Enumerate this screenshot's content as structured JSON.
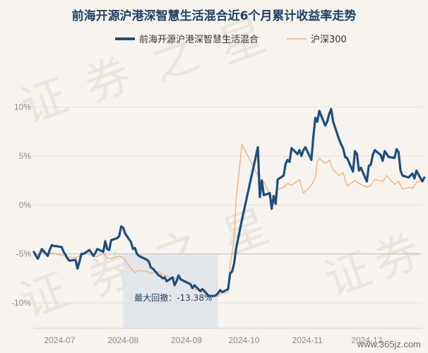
{
  "chart_data": {
    "type": "line",
    "title": "前海开源沪港深智慧生活混合近6个月累计收益率走势",
    "xlabel": "",
    "ylabel": "",
    "x_ticks": [
      "2024-07",
      "2024-08",
      "2024-09",
      "2024-10",
      "2024-11",
      "2024-12"
    ],
    "y_ticks": [
      "10%",
      "5%",
      "0%",
      "-5%",
      "-10%"
    ],
    "ylim": [
      -12.6,
      13.0
    ],
    "grid": true,
    "legend_position": "top",
    "x_start": "2024-06-17",
    "x_end": "2024-12-30",
    "drawdown": {
      "label": "最大回撤：-13.38%",
      "start": "2024-08-01",
      "end": "2024-09-18"
    },
    "series": [
      {
        "name": "前海开源沪港深智慧生活混合",
        "color": "#1f4e7e",
        "points": [
          [
            "2024-06-17",
            -4.8
          ],
          [
            "2024-06-18",
            -5.2
          ],
          [
            "2024-06-19",
            -5.5
          ],
          [
            "2024-06-20",
            -5.0
          ],
          [
            "2024-06-21",
            -4.5
          ],
          [
            "2024-06-24",
            -5.2
          ],
          [
            "2024-06-25",
            -4.6
          ],
          [
            "2024-06-26",
            -4.1
          ],
          [
            "2024-06-27",
            -4.2
          ],
          [
            "2024-06-28",
            -4.2
          ],
          [
            "2024-07-01",
            -4.3
          ],
          [
            "2024-07-02",
            -4.8
          ],
          [
            "2024-07-03",
            -5.1
          ],
          [
            "2024-07-04",
            -5.5
          ],
          [
            "2024-07-05",
            -5.7
          ],
          [
            "2024-07-08",
            -5.6
          ],
          [
            "2024-07-09",
            -6.5
          ],
          [
            "2024-07-10",
            -5.8
          ],
          [
            "2024-07-11",
            -5.0
          ],
          [
            "2024-07-12",
            -5.0
          ],
          [
            "2024-07-15",
            -4.6
          ],
          [
            "2024-07-16",
            -4.9
          ],
          [
            "2024-07-17",
            -5.2
          ],
          [
            "2024-07-18",
            -4.9
          ],
          [
            "2024-07-19",
            -4.5
          ],
          [
            "2024-07-22",
            -4.8
          ],
          [
            "2024-07-23",
            -3.7
          ],
          [
            "2024-07-24",
            -4.5
          ],
          [
            "2024-07-25",
            -4.6
          ],
          [
            "2024-07-26",
            -3.6
          ],
          [
            "2024-07-29",
            -3.4
          ],
          [
            "2024-07-30",
            -3.2
          ],
          [
            "2024-07-31",
            -2.2
          ],
          [
            "2024-08-01",
            -2.3
          ],
          [
            "2024-08-02",
            -2.9
          ],
          [
            "2024-08-05",
            -3.8
          ],
          [
            "2024-08-06",
            -4.5
          ],
          [
            "2024-08-07",
            -4.4
          ],
          [
            "2024-08-08",
            -5.0
          ],
          [
            "2024-08-09",
            -5.2
          ],
          [
            "2024-08-12",
            -5.5
          ],
          [
            "2024-08-13",
            -5.6
          ],
          [
            "2024-08-14",
            -5.8
          ],
          [
            "2024-08-15",
            -6.4
          ],
          [
            "2024-08-16",
            -6.5
          ],
          [
            "2024-08-19",
            -7.2
          ],
          [
            "2024-08-20",
            -7.3
          ],
          [
            "2024-08-21",
            -7.5
          ],
          [
            "2024-08-22",
            -7.4
          ],
          [
            "2024-08-23",
            -7.8
          ],
          [
            "2024-08-26",
            -7.4
          ],
          [
            "2024-08-27",
            -8.2
          ],
          [
            "2024-08-28",
            -7.8
          ],
          [
            "2024-08-29",
            -7.2
          ],
          [
            "2024-08-30",
            -7.6
          ],
          [
            "2024-09-02",
            -7.9
          ],
          [
            "2024-09-03",
            -8.0
          ],
          [
            "2024-09-04",
            -8.1
          ],
          [
            "2024-09-05",
            -8.5
          ],
          [
            "2024-09-06",
            -8.2
          ],
          [
            "2024-09-09",
            -8.8
          ],
          [
            "2024-09-10",
            -8.6
          ],
          [
            "2024-09-11",
            -8.8
          ],
          [
            "2024-09-12",
            -9.0
          ],
          [
            "2024-09-13",
            -9.3
          ],
          [
            "2024-09-16",
            -9.3
          ],
          [
            "2024-09-17",
            -9.2
          ],
          [
            "2024-09-18",
            -9.0
          ],
          [
            "2024-09-19",
            -8.7
          ],
          [
            "2024-09-20",
            -8.9
          ],
          [
            "2024-09-23",
            -8.6
          ],
          [
            "2024-09-24",
            -7.0
          ],
          [
            "2024-09-25",
            -6.8
          ],
          [
            "2024-09-26",
            -6.0
          ],
          [
            "2024-09-27",
            -4.5
          ],
          [
            "2024-09-30",
            -1.5
          ],
          [
            "2024-10-08",
            5.9
          ],
          [
            "2024-10-09",
            0.8
          ],
          [
            "2024-10-10",
            2.5
          ],
          [
            "2024-10-11",
            1.0
          ],
          [
            "2024-10-14",
            1.2
          ],
          [
            "2024-10-15",
            -0.4
          ],
          [
            "2024-10-16",
            0.9
          ],
          [
            "2024-10-17",
            0.1
          ],
          [
            "2024-10-18",
            2.6
          ],
          [
            "2024-10-21",
            3.0
          ],
          [
            "2024-10-22",
            4.2
          ],
          [
            "2024-10-23",
            4.6
          ],
          [
            "2024-10-24",
            4.4
          ],
          [
            "2024-10-25",
            5.8
          ],
          [
            "2024-10-28",
            5.2
          ],
          [
            "2024-10-29",
            5.6
          ],
          [
            "2024-10-30",
            5.0
          ],
          [
            "2024-10-31",
            5.6
          ],
          [
            "2024-11-01",
            5.9
          ],
          [
            "2024-11-04",
            4.6
          ],
          [
            "2024-11-05",
            7.0
          ],
          [
            "2024-11-06",
            8.9
          ],
          [
            "2024-11-07",
            8.5
          ],
          [
            "2024-11-08",
            9.6
          ],
          [
            "2024-11-11",
            8.1
          ],
          [
            "2024-11-12",
            8.5
          ],
          [
            "2024-11-13",
            9.3
          ],
          [
            "2024-11-14",
            9.8
          ],
          [
            "2024-11-15",
            8.5
          ],
          [
            "2024-11-18",
            6.7
          ],
          [
            "2024-11-19",
            6.2
          ],
          [
            "2024-11-20",
            5.8
          ],
          [
            "2024-11-21",
            4.9
          ],
          [
            "2024-11-22",
            4.8
          ],
          [
            "2024-11-25",
            3.4
          ],
          [
            "2024-11-26",
            5.5
          ],
          [
            "2024-11-27",
            5.2
          ],
          [
            "2024-11-28",
            3.5
          ],
          [
            "2024-11-29",
            3.8
          ],
          [
            "2024-12-02",
            2.4
          ],
          [
            "2024-12-03",
            4.0
          ],
          [
            "2024-12-04",
            4.1
          ],
          [
            "2024-12-05",
            5.1
          ],
          [
            "2024-12-06",
            5.6
          ],
          [
            "2024-12-09",
            5.1
          ],
          [
            "2024-12-10",
            4.5
          ],
          [
            "2024-12-11",
            5.5
          ],
          [
            "2024-12-12",
            5.2
          ],
          [
            "2024-12-13",
            4.9
          ],
          [
            "2024-12-16",
            4.8
          ],
          [
            "2024-12-17",
            5.7
          ],
          [
            "2024-12-18",
            5.4
          ],
          [
            "2024-12-19",
            3.5
          ],
          [
            "2024-12-20",
            3.0
          ],
          [
            "2024-12-23",
            2.8
          ],
          [
            "2024-12-24",
            3.0
          ],
          [
            "2024-12-25",
            3.2
          ],
          [
            "2024-12-26",
            2.7
          ],
          [
            "2024-12-27",
            3.5
          ],
          [
            "2024-12-30",
            2.4
          ],
          [
            "2024-12-31",
            2.8
          ]
        ]
      },
      {
        "name": "沪深300",
        "color": "#f0b27a",
        "points": [
          [
            "2024-06-17",
            -4.9
          ],
          [
            "2024-06-19",
            -5.1
          ],
          [
            "2024-06-21",
            -4.8
          ],
          [
            "2024-06-24",
            -5.0
          ],
          [
            "2024-06-26",
            -4.9
          ],
          [
            "2024-06-28",
            -5.0
          ],
          [
            "2024-07-02",
            -5.2
          ],
          [
            "2024-07-04",
            -5.3
          ],
          [
            "2024-07-08",
            -5.4
          ],
          [
            "2024-07-10",
            -5.2
          ],
          [
            "2024-07-12",
            -4.9
          ],
          [
            "2024-07-16",
            -5.1
          ],
          [
            "2024-07-18",
            -5.3
          ],
          [
            "2024-07-22",
            -5.0
          ],
          [
            "2024-07-24",
            -5.4
          ],
          [
            "2024-07-26",
            -5.5
          ],
          [
            "2024-07-30",
            -5.2
          ],
          [
            "2024-08-01",
            -5.4
          ],
          [
            "2024-08-05",
            -6.5
          ],
          [
            "2024-08-07",
            -6.9
          ],
          [
            "2024-08-09",
            -6.7
          ],
          [
            "2024-08-13",
            -6.8
          ],
          [
            "2024-08-15",
            -7.0
          ],
          [
            "2024-08-19",
            -6.8
          ],
          [
            "2024-08-21",
            -7.1
          ],
          [
            "2024-08-23",
            -7.3
          ],
          [
            "2024-08-27",
            -7.5
          ],
          [
            "2024-08-29",
            -7.4
          ],
          [
            "2024-09-02",
            -7.8
          ],
          [
            "2024-09-04",
            -8.2
          ],
          [
            "2024-09-06",
            -8.6
          ],
          [
            "2024-09-10",
            -8.9
          ],
          [
            "2024-09-12",
            -9.2
          ],
          [
            "2024-09-14",
            -9.4
          ],
          [
            "2024-09-18",
            -9.3
          ],
          [
            "2024-09-20",
            -9.0
          ],
          [
            "2024-09-23",
            -8.9
          ],
          [
            "2024-09-24",
            -6.2
          ],
          [
            "2024-09-26",
            -3.5
          ],
          [
            "2024-09-27",
            0.5
          ],
          [
            "2024-09-30",
            6.2
          ],
          [
            "2024-10-08",
            3.0
          ],
          [
            "2024-10-09",
            2.0
          ],
          [
            "2024-10-11",
            2.4
          ],
          [
            "2024-10-14",
            1.1
          ],
          [
            "2024-10-16",
            0.8
          ],
          [
            "2024-10-18",
            1.6
          ],
          [
            "2024-10-21",
            1.8
          ],
          [
            "2024-10-23",
            2.2
          ],
          [
            "2024-10-25",
            2.0
          ],
          [
            "2024-10-29",
            2.6
          ],
          [
            "2024-10-31",
            1.2
          ],
          [
            "2024-11-04",
            2.0
          ],
          [
            "2024-11-06",
            2.8
          ],
          [
            "2024-11-07",
            4.4
          ],
          [
            "2024-11-08",
            4.8
          ],
          [
            "2024-11-11",
            4.2
          ],
          [
            "2024-11-13",
            4.6
          ],
          [
            "2024-11-15",
            3.6
          ],
          [
            "2024-11-18",
            3.0
          ],
          [
            "2024-11-20",
            3.3
          ],
          [
            "2024-11-22",
            1.9
          ],
          [
            "2024-11-26",
            2.5
          ],
          [
            "2024-11-28",
            2.2
          ],
          [
            "2024-12-02",
            1.8
          ],
          [
            "2024-12-04",
            2.0
          ],
          [
            "2024-12-06",
            2.6
          ],
          [
            "2024-12-10",
            2.4
          ],
          [
            "2024-12-12",
            3.0
          ],
          [
            "2024-12-16",
            2.1
          ],
          [
            "2024-12-18",
            2.4
          ],
          [
            "2024-12-20",
            1.6
          ],
          [
            "2024-12-23",
            1.8
          ],
          [
            "2024-12-25",
            1.7
          ],
          [
            "2024-12-27",
            2.3
          ],
          [
            "2024-12-31",
            2.7
          ]
        ]
      }
    ]
  },
  "watermark": [
    "证",
    "券",
    "之",
    "星"
  ],
  "site_label": "www.365jz.com"
}
